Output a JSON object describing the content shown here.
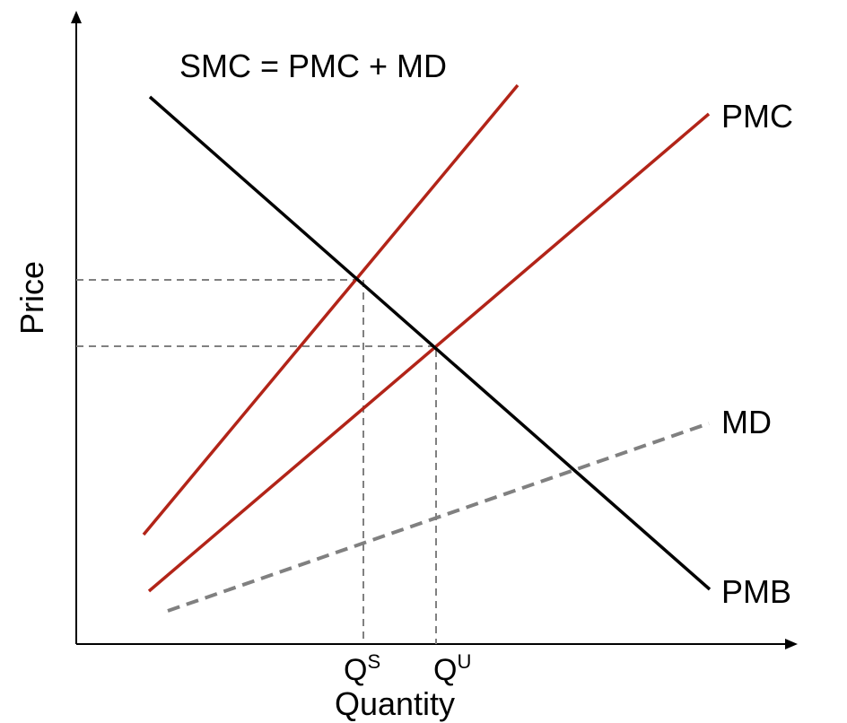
{
  "title": "SMC = PMC + MD",
  "axes": {
    "x_label": "Quantity",
    "y_label": "Price"
  },
  "quantities": {
    "social": {
      "base": "Q",
      "sup": "S"
    },
    "unregulated": {
      "base": "Q",
      "sup": "U"
    }
  },
  "curves": {
    "smc": {
      "label": "",
      "color": "#b22418",
      "style": "solid"
    },
    "pmc": {
      "label": "PMC",
      "color": "#b22418",
      "style": "solid"
    },
    "md": {
      "label": "MD",
      "color": "#808080",
      "style": "dashed"
    },
    "pmb": {
      "label": "PMB",
      "color": "#000000",
      "style": "solid"
    }
  },
  "colors": {
    "axis": "#000000",
    "guide": "#808080"
  }
}
